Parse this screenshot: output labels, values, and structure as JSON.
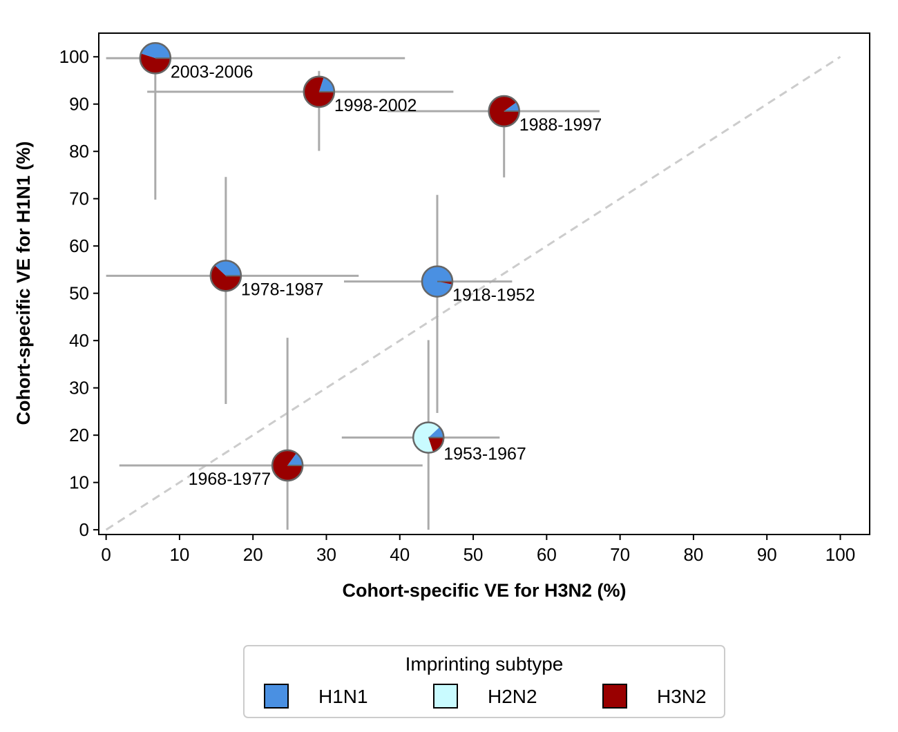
{
  "chart_data": {
    "type": "scatter",
    "title": "",
    "xlabel": "Cohort-specific VE for H3N2 (%)",
    "ylabel": "Cohort-specific VE for H1N1 (%)",
    "xlim": [
      -1,
      104
    ],
    "ylim": [
      -1,
      105
    ],
    "xticks": [
      "0",
      "10",
      "20",
      "30",
      "40",
      "50",
      "60",
      "70",
      "80",
      "90",
      "100"
    ],
    "yticks": [
      "0",
      "10",
      "20",
      "30",
      "40",
      "50",
      "60",
      "70",
      "80",
      "90",
      "100"
    ],
    "grid": false,
    "reference_line": {
      "style": "dashed",
      "from": [
        0,
        0
      ],
      "to": [
        100,
        100
      ],
      "color": "#cccccc"
    },
    "marker_style": "pie chart of imprinting subtype proportions",
    "colors": {
      "H1N1": "#4a90e2",
      "H2N2": "#c9fbff",
      "H3N2": "#990000",
      "error_bar": "#aaaaaa",
      "marker_edge": "#666666"
    },
    "cohorts": [
      {
        "label": "2003-2006",
        "x": 6.7,
        "x_ci": [
          0,
          40.7
        ],
        "y": 99.7,
        "y_ci": [
          69.8,
          100
        ],
        "composition": {
          "H1N1": 0.45,
          "H2N2": 0.0,
          "H3N2": 0.55
        }
      },
      {
        "label": "1998-2002",
        "x": 29.0,
        "x_ci": [
          5.6,
          47.3
        ],
        "y": 92.6,
        "y_ci": [
          80.1,
          97.0
        ],
        "composition": {
          "H1N1": 0.2,
          "H2N2": 0.0,
          "H3N2": 0.8
        }
      },
      {
        "label": "1988-1997",
        "x": 54.2,
        "x_ci": [
          38.3,
          67.2
        ],
        "y": 88.5,
        "y_ci": [
          74.5,
          88.5
        ],
        "composition": {
          "H1N1": 0.1,
          "H2N2": 0.0,
          "H3N2": 0.9
        }
      },
      {
        "label": "1978-1987",
        "x": 16.3,
        "x_ci": [
          0,
          34.4
        ],
        "y": 53.7,
        "y_ci": [
          26.6,
          74.6
        ],
        "composition": {
          "H1N1": 0.38,
          "H2N2": 0.0,
          "H3N2": 0.62
        }
      },
      {
        "label": "1918-1952",
        "x": 45.1,
        "x_ci": [
          32.4,
          55.3
        ],
        "y": 52.5,
        "y_ci": [
          24.7,
          70.8
        ],
        "composition": {
          "H1N1": 0.97,
          "H2N2": 0.0,
          "H3N2": 0.03
        }
      },
      {
        "label": "1953-1967",
        "x": 43.9,
        "x_ci": [
          32.1,
          53.6
        ],
        "y": 19.5,
        "y_ci": [
          0,
          40.1
        ],
        "composition": {
          "H1N1": 0.12,
          "H2N2": 0.68,
          "H3N2": 0.2
        }
      },
      {
        "label": "1968-1977",
        "x": 24.7,
        "x_ci": [
          1.8,
          43.1
        ],
        "y": 13.6,
        "y_ci": [
          0,
          40.6
        ],
        "composition": {
          "H1N1": 0.15,
          "H2N2": 0.0,
          "H3N2": 0.85
        }
      }
    ],
    "legend": {
      "title": "Imprinting subtype",
      "placement": "below plot",
      "entries": [
        "H1N1",
        "H2N2",
        "H3N2"
      ]
    }
  }
}
